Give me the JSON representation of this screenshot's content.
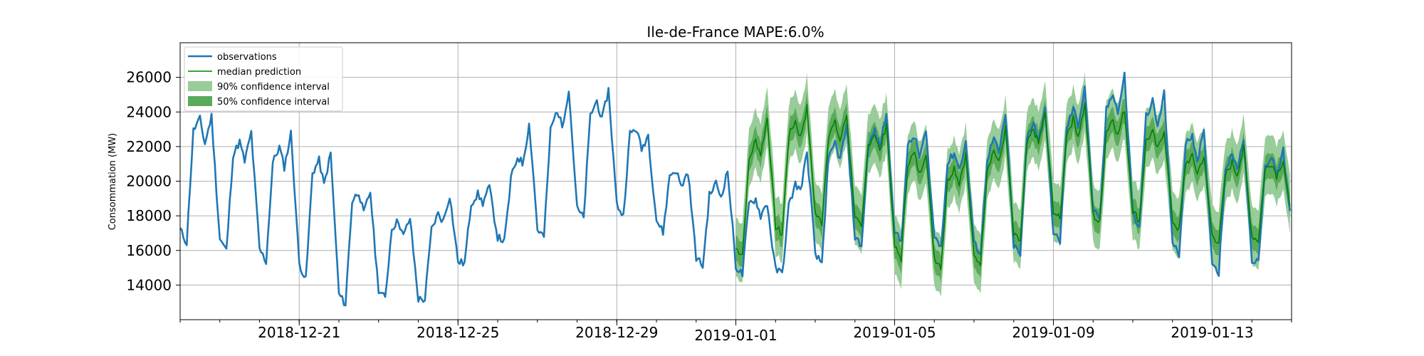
{
  "chart_data": {
    "type": "line",
    "title": "Ile-de-France MAPE:6.0%",
    "xlabel": "",
    "ylabel": "Consommation (MW)",
    "xlim": [
      "2018-12-18",
      "2019-01-15"
    ],
    "ylim": [
      12000,
      28000
    ],
    "yticks": [
      14000,
      16000,
      18000,
      20000,
      22000,
      24000,
      26000
    ],
    "xticks": [
      "2018-12-21",
      "2018-12-25",
      "2018-12-29",
      "2019-01-01",
      "2019-01-05",
      "2019-01-09",
      "2019-01-13"
    ],
    "grid": true,
    "legend_position": "top-left",
    "forecast_start": "2019-01-01",
    "legend": [
      {
        "label": "observations",
        "kind": "line",
        "color": "#1f77b4"
      },
      {
        "label": "median prediction",
        "kind": "line",
        "color": "#008000"
      },
      {
        "label": "90% confidence interval",
        "kind": "band",
        "color": "#98cc98"
      },
      {
        "label": "50% confidence interval",
        "kind": "band",
        "color": "#5aaa5a"
      }
    ],
    "series": [
      {
        "name": "observations",
        "color": "#1f77b4",
        "daily_profile": [
          {
            "date": "2018-12-18",
            "min": 16500,
            "max": 25500
          },
          {
            "date": "2018-12-19",
            "min": 16100,
            "max": 23300
          },
          {
            "date": "2018-12-20",
            "min": 15500,
            "max": 22700
          },
          {
            "date": "2018-12-21",
            "min": 14600,
            "max": 22800
          },
          {
            "date": "2018-12-22",
            "min": 12800,
            "max": 21300
          },
          {
            "date": "2018-12-23",
            "min": 13300,
            "max": 18900
          },
          {
            "date": "2018-12-24",
            "min": 12800,
            "max": 17600
          },
          {
            "date": "2018-12-25",
            "min": 15000,
            "max": 19600
          },
          {
            "date": "2018-12-26",
            "min": 16500,
            "max": 19700
          },
          {
            "date": "2018-12-27",
            "min": 16600,
            "max": 24200
          },
          {
            "date": "2018-12-28",
            "min": 17800,
            "max": 25600
          },
          {
            "date": "2018-12-29",
            "min": 18100,
            "max": 25200
          },
          {
            "date": "2018-12-30",
            "min": 17400,
            "max": 22000
          },
          {
            "date": "2018-12-31",
            "min": 15200,
            "max": 20200
          },
          {
            "date": "2019-01-01",
            "min": 14600,
            "max": 20700
          },
          {
            "date": "2019-01-02",
            "min": 14600,
            "max": 18200
          },
          {
            "date": "2019-01-03",
            "min": 15100,
            "max": 22600
          },
          {
            "date": "2019-01-04",
            "min": 16200,
            "max": 23300
          },
          {
            "date": "2019-01-05",
            "min": 16500,
            "max": 24100
          },
          {
            "date": "2019-01-06",
            "min": 16300,
            "max": 22500
          },
          {
            "date": "2019-01-07",
            "min": 15900,
            "max": 22100
          },
          {
            "date": "2019-01-08",
            "min": 15600,
            "max": 24400
          },
          {
            "date": "2019-01-09",
            "min": 16300,
            "max": 24300
          },
          {
            "date": "2019-01-10",
            "min": 17700,
            "max": 25800
          },
          {
            "date": "2019-01-11",
            "min": 17500,
            "max": 26200
          },
          {
            "date": "2019-01-12",
            "min": 15800,
            "max": 24800
          },
          {
            "date": "2019-01-13",
            "min": 14700,
            "max": 22300
          },
          {
            "date": "2019-01-14",
            "min": 14900,
            "max": 22600
          },
          {
            "date": "2019-01-15",
            "min": 17000,
            "max": 21500
          }
        ]
      },
      {
        "name": "median prediction",
        "color": "#008000",
        "daily_profile": [
          {
            "date": "2019-01-01",
            "min": 15600,
            "max": 22000
          },
          {
            "date": "2019-01-02",
            "min": 16800,
            "max": 24100
          },
          {
            "date": "2019-01-03",
            "min": 17600,
            "max": 24300
          },
          {
            "date": "2019-01-04",
            "min": 17500,
            "max": 23700
          },
          {
            "date": "2019-01-05",
            "min": 15600,
            "max": 23300
          },
          {
            "date": "2019-01-06",
            "min": 15100,
            "max": 21300
          },
          {
            "date": "2019-01-07",
            "min": 15100,
            "max": 21600
          },
          {
            "date": "2019-01-08",
            "min": 16300,
            "max": 23400
          },
          {
            "date": "2019-01-09",
            "min": 17800,
            "max": 24000
          },
          {
            "date": "2019-01-10",
            "min": 17500,
            "max": 24500
          },
          {
            "date": "2019-01-11",
            "min": 17800,
            "max": 24100
          },
          {
            "date": "2019-01-12",
            "min": 17300,
            "max": 22700
          },
          {
            "date": "2019-01-13",
            "min": 16500,
            "max": 21100
          },
          {
            "date": "2019-01-14",
            "min": 16400,
            "max": 22100
          },
          {
            "date": "2019-01-15",
            "min": 17500,
            "max": 21000
          }
        ]
      }
    ],
    "bands": [
      {
        "name": "90% confidence interval",
        "color": "#98cc98",
        "lower_offset_mw": 1600,
        "upper_offset_mw": 1800
      },
      {
        "name": "50% confidence interval",
        "color": "#5aaa5a",
        "lower_offset_mw": 700,
        "upper_offset_mw": 750
      }
    ]
  }
}
